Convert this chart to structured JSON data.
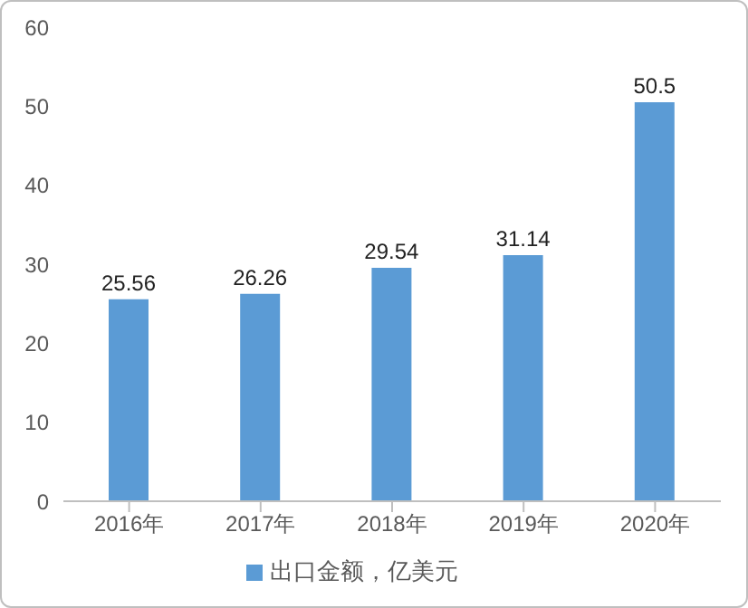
{
  "chart_data": {
    "type": "bar",
    "categories": [
      "2016年",
      "2017年",
      "2018年",
      "2019年",
      "2020年"
    ],
    "series": [
      {
        "name": "出口金额，亿美元",
        "color": "#5b9bd5",
        "values": [
          25.56,
          26.26,
          29.54,
          31.14,
          50.5
        ]
      }
    ],
    "ylim": [
      0,
      60
    ],
    "yticks": [
      0,
      10,
      20,
      30,
      40,
      50,
      60
    ],
    "grid": false,
    "legend": "bottom",
    "data_labels": true
  }
}
